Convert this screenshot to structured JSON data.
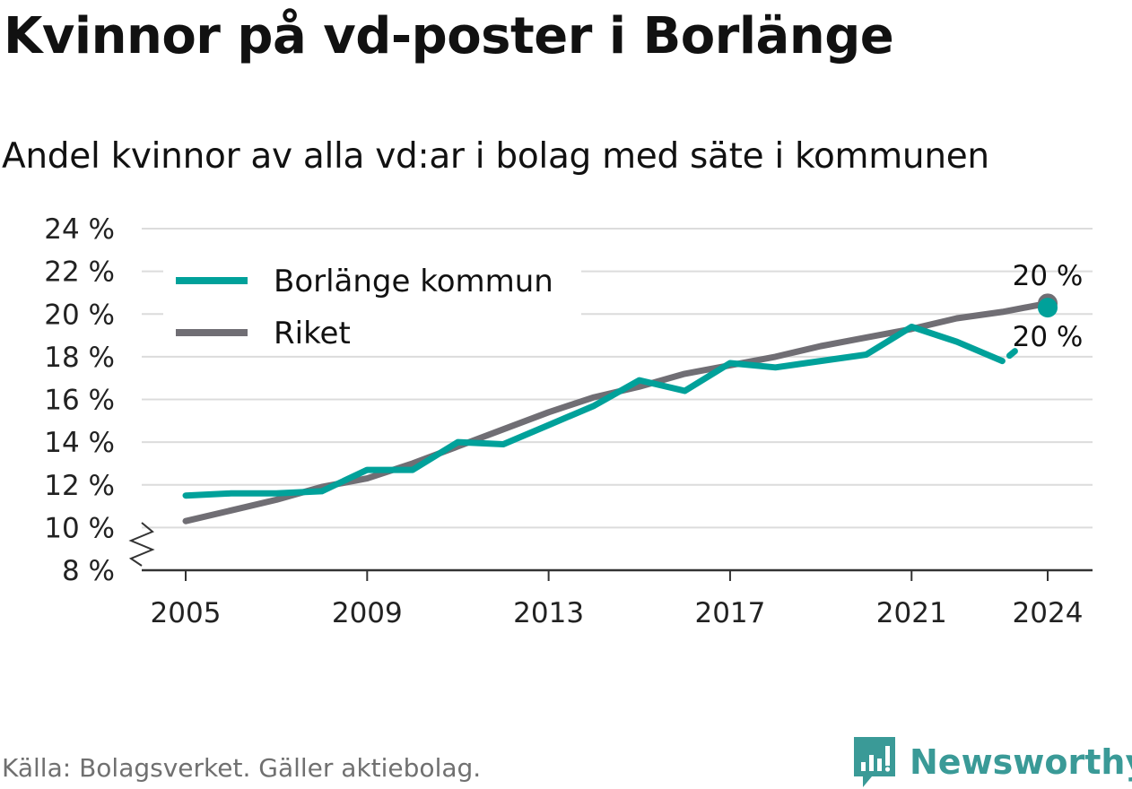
{
  "header": {
    "title": "Kvinnor på vd-poster i Borlänge",
    "subtitle": "Andel kvinnor av alla vd:ar i bolag med säte i kommunen"
  },
  "footer": {
    "source": "Källa: Bolagsverket. Gäller aktiebolag.",
    "brand": "Newsworthy",
    "brand_color": "#3a9a97"
  },
  "chart_data": {
    "type": "line",
    "title": "Kvinnor på vd-poster i Borlänge",
    "subtitle": "Andel kvinnor av alla vd:ar i bolag med säte i kommunen",
    "xlabel": "",
    "ylabel": "",
    "x": [
      2005,
      2006,
      2007,
      2008,
      2009,
      2010,
      2011,
      2012,
      2013,
      2014,
      2015,
      2016,
      2017,
      2018,
      2019,
      2020,
      2021,
      2022,
      2023,
      2024
    ],
    "x_ticks": [
      "2005",
      "2009",
      "2013",
      "2017",
      "2021",
      "2024"
    ],
    "y_ticks": [
      "8 %",
      "10 %",
      "12 %",
      "14 %",
      "16 %",
      "18 %",
      "20 %",
      "22 %",
      "24 %"
    ],
    "ylim": [
      8,
      24
    ],
    "y_axis_break": true,
    "grid": true,
    "legend_position": "top-left",
    "series": [
      {
        "name": "Borlänge kommun",
        "color": "#00a19a",
        "values": [
          11.5,
          11.6,
          11.6,
          11.7,
          12.7,
          12.7,
          14.0,
          13.9,
          14.8,
          15.7,
          16.9,
          16.4,
          17.7,
          17.5,
          17.8,
          18.1,
          19.4,
          18.7,
          17.8,
          20.3
        ],
        "end_label": "20 %"
      },
      {
        "name": "Riket",
        "color": "#706e74",
        "values": [
          10.3,
          10.8,
          11.3,
          11.9,
          12.3,
          13.0,
          13.8,
          14.6,
          15.4,
          16.1,
          16.6,
          17.2,
          17.6,
          18.0,
          18.5,
          18.9,
          19.3,
          19.8,
          20.1,
          20.5
        ],
        "end_label": "20 %"
      }
    ]
  }
}
